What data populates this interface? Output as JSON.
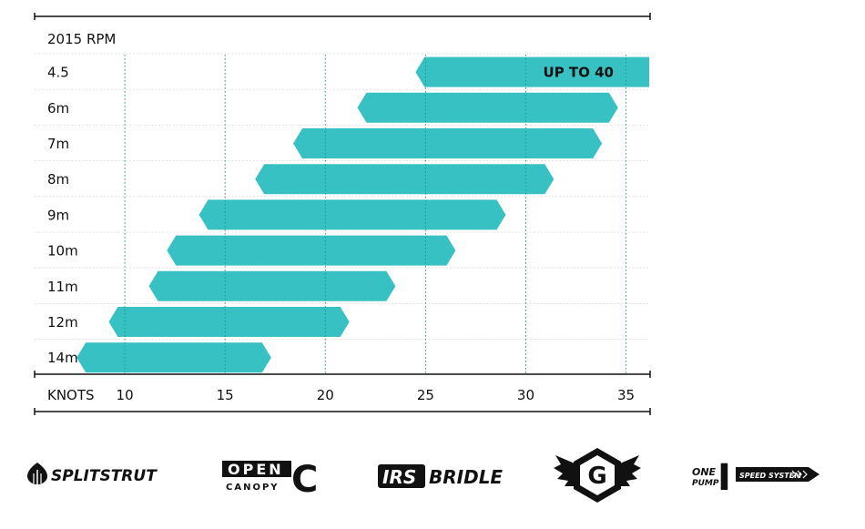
{
  "chart_data": {
    "type": "bar",
    "title": "2015 RPM",
    "xlabel": "KNOTS",
    "xlim": [
      5.5,
      36.2
    ],
    "x_ticks": [
      10,
      15,
      20,
      25,
      30,
      35
    ],
    "grid": true,
    "bar_color": "#38c1c3",
    "categories": [
      "4.5",
      "6m",
      "7m",
      "8m",
      "9m",
      "10m",
      "11m",
      "12m",
      "14m"
    ],
    "ranges": [
      {
        "size": "4.5",
        "min": 24.5,
        "max": 40
      },
      {
        "size": "6m",
        "min": 21.6,
        "max": 34.6
      },
      {
        "size": "7m",
        "min": 18.4,
        "max": 33.8
      },
      {
        "size": "8m",
        "min": 16.5,
        "max": 31.4
      },
      {
        "size": "9m",
        "min": 13.7,
        "max": 29.0
      },
      {
        "size": "10m",
        "min": 12.1,
        "max": 26.5
      },
      {
        "size": "11m",
        "min": 11.2,
        "max": 23.5
      },
      {
        "size": "12m",
        "min": 9.2,
        "max": 21.2
      },
      {
        "size": "14m",
        "min": 7.6,
        "max": 17.3
      }
    ],
    "annotations": [
      {
        "size": "4.5",
        "text": "UP TO 40"
      }
    ]
  },
  "logos": [
    {
      "name": "splitstrut",
      "text": "SPLITSTRUT"
    },
    {
      "name": "open-canopy",
      "text_top": "OPEN",
      "text_bottom": "CANOPY",
      "mark": "C"
    },
    {
      "name": "irs-bridle",
      "text_a": "IRS",
      "text_b": "BRIDLE"
    },
    {
      "name": "g-wings",
      "mark": "G"
    },
    {
      "name": "one-pump",
      "text_top": "ONE",
      "text_bottom": "PUMP",
      "mark": "I",
      "tag": "SPEED SYSTEM"
    }
  ]
}
